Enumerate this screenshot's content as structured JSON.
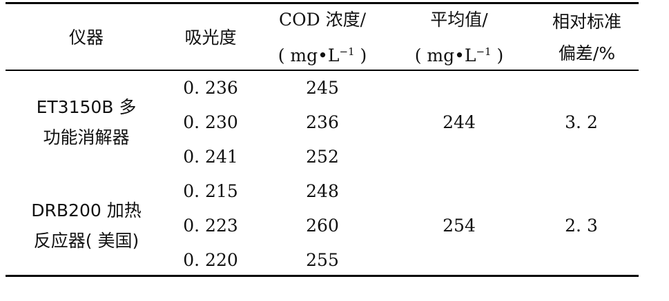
{
  "headers": {
    "instrument": "仪器",
    "absorbance": "吸光度",
    "cod_line1": "COD 浓度/",
    "cod_line2": "( mg•L",
    "unit_exp": "−1",
    "unit_close": ")",
    "mean_line1": "平均值/",
    "mean_line2": "( mg•L",
    "rsd_line1": "相对标准",
    "rsd_line2": "偏差/%"
  },
  "groups": [
    {
      "instrument_line1": "ET3150B 多",
      "instrument_line2": "功能消解器",
      "mean": "244",
      "rsd": "3. 2",
      "rows": [
        {
          "absorbance": "0. 236",
          "cod": "245"
        },
        {
          "absorbance": "0. 230",
          "cod": "236"
        },
        {
          "absorbance": "0. 241",
          "cod": "252"
        }
      ]
    },
    {
      "instrument_line1": "DRB200 加热",
      "instrument_line2": "反应器( 美国)",
      "mean": "254",
      "rsd": "2. 3",
      "rows": [
        {
          "absorbance": "0. 215",
          "cod": "248"
        },
        {
          "absorbance": "0. 223",
          "cod": "260"
        },
        {
          "absorbance": "0. 220",
          "cod": "255"
        }
      ]
    }
  ]
}
